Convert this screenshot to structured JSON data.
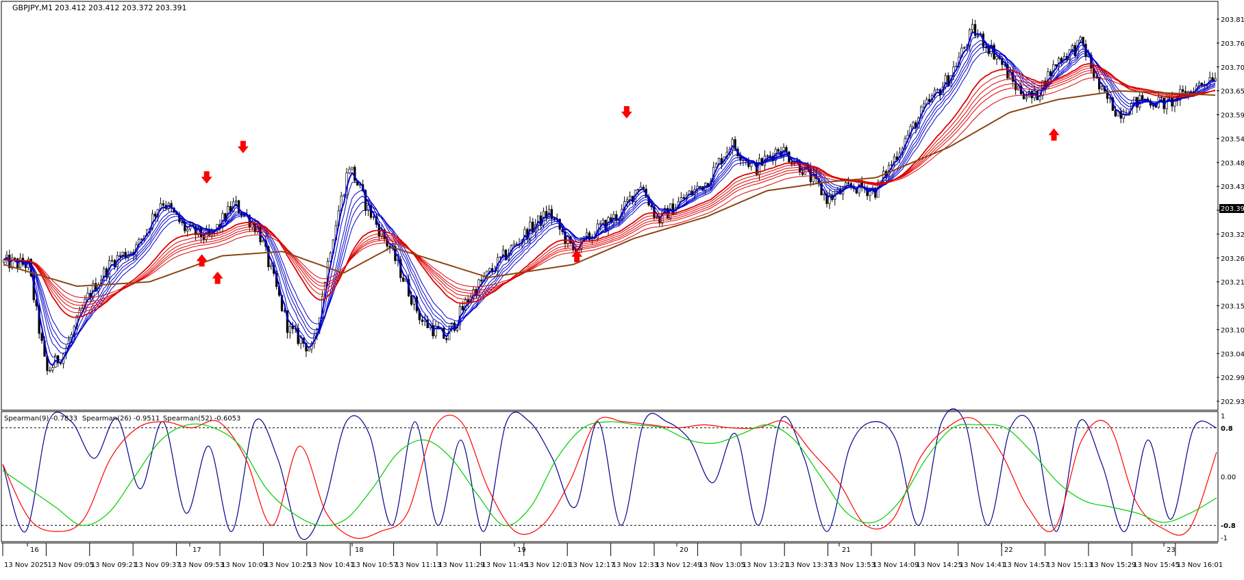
{
  "header": {
    "symbol": "GBPJPY,M1",
    "ohlc": "203.412 203.412 203.372 203.391"
  },
  "price_axis": {
    "ticks": [
      "203.815",
      "203.760",
      "203.705",
      "203.650",
      "203.595",
      "203.540",
      "203.485",
      "203.430",
      "203.375",
      "203.320",
      "203.265",
      "203.210",
      "203.155",
      "203.100",
      "203.045",
      "202.990",
      "202.935"
    ],
    "current": "203.391"
  },
  "indicator": {
    "legend": [
      "Spearman(9) -0.7833",
      "Spearman(26) -0.9511",
      "Spearman(52) -0.6053"
    ],
    "ticks": [
      "1",
      "0.8",
      "0.00",
      "-0.8",
      "-1"
    ],
    "levels": [
      0.8,
      -0.8
    ]
  },
  "time_axis": {
    "day_marks": [
      "16",
      "17",
      "18",
      "19",
      "20",
      "21",
      "22",
      "23"
    ],
    "time_labels": [
      "13 Nov 2025",
      "13 Nov 09:05",
      "13 Nov 09:21",
      "13 Nov 09:37",
      "13 Nov 09:53",
      "13 Nov 10:09",
      "13 Nov 10:25",
      "13 Nov 10:41",
      "13 Nov 10:57",
      "13 Nov 11:13",
      "13 Nov 11:29",
      "13 Nov 11:45",
      "13 Nov 12:01",
      "13 Nov 12:17",
      "13 Nov 12:33",
      "13 Nov 12:49",
      "13 Nov 13:05",
      "13 Nov 13:21",
      "13 Nov 13:37",
      "13 Nov 13:53",
      "13 Nov 14:09",
      "13 Nov 14:25",
      "13 Nov 14:41",
      "13 Nov 14:57",
      "13 Nov 15:13",
      "13 Nov 15:29",
      "13 Nov 15:45",
      "13 Nov 16:01"
    ]
  },
  "colors": {
    "candles": "#000000",
    "fast_ma": "#0000cc",
    "slow_ma": "#dd0000",
    "long_ma": "#8b4513",
    "spearman9": "#00008b",
    "spearman26": "#ff0000",
    "spearman52": "#00cc00",
    "arrows": "#ff0000"
  },
  "chart_data": [
    {
      "type": "candlestick",
      "title": "GBPJPY,M1",
      "ylim": [
        202.935,
        203.83
      ],
      "close_path": [
        {
          "t": 0,
          "v": 203.255
        },
        {
          "t": 0.02,
          "v": 203.25
        },
        {
          "t": 0.035,
          "v": 203.0
        },
        {
          "t": 0.05,
          "v": 203.05
        },
        {
          "t": 0.07,
          "v": 203.18
        },
        {
          "t": 0.09,
          "v": 203.26
        },
        {
          "t": 0.11,
          "v": 203.29
        },
        {
          "t": 0.13,
          "v": 203.4
        },
        {
          "t": 0.15,
          "v": 203.33
        },
        {
          "t": 0.17,
          "v": 203.31
        },
        {
          "t": 0.19,
          "v": 203.39
        },
        {
          "t": 0.21,
          "v": 203.33
        },
        {
          "t": 0.235,
          "v": 203.1
        },
        {
          "t": 0.255,
          "v": 203.05
        },
        {
          "t": 0.27,
          "v": 203.3
        },
        {
          "t": 0.285,
          "v": 203.48
        },
        {
          "t": 0.3,
          "v": 203.38
        },
        {
          "t": 0.32,
          "v": 203.28
        },
        {
          "t": 0.345,
          "v": 203.12
        },
        {
          "t": 0.365,
          "v": 203.08
        },
        {
          "t": 0.385,
          "v": 203.18
        },
        {
          "t": 0.41,
          "v": 203.26
        },
        {
          "t": 0.43,
          "v": 203.32
        },
        {
          "t": 0.45,
          "v": 203.37
        },
        {
          "t": 0.47,
          "v": 203.28
        },
        {
          "t": 0.49,
          "v": 203.33
        },
        {
          "t": 0.51,
          "v": 203.37
        },
        {
          "t": 0.525,
          "v": 203.44
        },
        {
          "t": 0.54,
          "v": 203.35
        },
        {
          "t": 0.56,
          "v": 203.4
        },
        {
          "t": 0.58,
          "v": 203.44
        },
        {
          "t": 0.6,
          "v": 203.53
        },
        {
          "t": 0.62,
          "v": 203.47
        },
        {
          "t": 0.64,
          "v": 203.52
        },
        {
          "t": 0.66,
          "v": 203.47
        },
        {
          "t": 0.68,
          "v": 203.4
        },
        {
          "t": 0.7,
          "v": 203.43
        },
        {
          "t": 0.72,
          "v": 203.42
        },
        {
          "t": 0.74,
          "v": 203.52
        },
        {
          "t": 0.76,
          "v": 203.61
        },
        {
          "t": 0.78,
          "v": 203.68
        },
        {
          "t": 0.8,
          "v": 203.79
        },
        {
          "t": 0.82,
          "v": 203.73
        },
        {
          "t": 0.835,
          "v": 203.66
        },
        {
          "t": 0.85,
          "v": 203.63
        },
        {
          "t": 0.87,
          "v": 203.72
        },
        {
          "t": 0.89,
          "v": 203.76
        },
        {
          "t": 0.905,
          "v": 203.65
        },
        {
          "t": 0.92,
          "v": 203.6
        },
        {
          "t": 0.94,
          "v": 203.63
        },
        {
          "t": 0.96,
          "v": 203.62
        },
        {
          "t": 0.98,
          "v": 203.65
        },
        {
          "t": 1.0,
          "v": 203.69
        }
      ],
      "long_ma_path": [
        {
          "t": 0,
          "v": 203.25
        },
        {
          "t": 0.06,
          "v": 203.2
        },
        {
          "t": 0.12,
          "v": 203.21
        },
        {
          "t": 0.18,
          "v": 203.27
        },
        {
          "t": 0.23,
          "v": 203.28
        },
        {
          "t": 0.28,
          "v": 203.23
        },
        {
          "t": 0.32,
          "v": 203.29
        },
        {
          "t": 0.4,
          "v": 203.22
        },
        {
          "t": 0.47,
          "v": 203.25
        },
        {
          "t": 0.52,
          "v": 203.31
        },
        {
          "t": 0.58,
          "v": 203.36
        },
        {
          "t": 0.63,
          "v": 203.42
        },
        {
          "t": 0.68,
          "v": 203.44
        },
        {
          "t": 0.72,
          "v": 203.45
        },
        {
          "t": 0.78,
          "v": 203.52
        },
        {
          "t": 0.83,
          "v": 203.6
        },
        {
          "t": 0.87,
          "v": 203.63
        },
        {
          "t": 0.92,
          "v": 203.65
        },
        {
          "t": 1.0,
          "v": 203.64
        }
      ],
      "down_arrows": [
        {
          "t": 0.168,
          "v": 203.43
        },
        {
          "t": 0.198,
          "v": 203.5
        },
        {
          "t": 0.514,
          "v": 203.58
        },
        {
          "t": 0.905,
          "v": 203.87
        }
      ],
      "up_arrows": [
        {
          "t": 0.164,
          "v": 203.28
        },
        {
          "t": 0.177,
          "v": 203.24
        },
        {
          "t": 0.473,
          "v": 203.29
        },
        {
          "t": 0.866,
          "v": 203.57
        }
      ]
    },
    {
      "type": "line",
      "title": "Spearman",
      "ylim": [
        -1,
        1
      ],
      "series": [
        {
          "name": "Spearman(9) -0.7833",
          "values": [
            0.2,
            -0.9,
            0.9,
            0.9,
            0.3,
            0.95,
            -0.2,
            0.9,
            -0.6,
            0.5,
            -0.9,
            0.9,
            0.3,
            -1.0,
            -0.5,
            0.9,
            0.7,
            -0.8,
            0.9,
            -0.8,
            0.6,
            -0.9,
            0.9,
            0.9,
            0.3,
            -0.5,
            0.9,
            -0.8,
            0.9,
            0.9,
            0.6,
            -0.1,
            0.7,
            -0.8,
            0.95,
            0.3,
            -0.9,
            0.5,
            0.9,
            0.6,
            -0.8,
            0.9,
            0.9,
            -0.8,
            0.8,
            0.8,
            -0.9,
            0.9,
            0.2,
            -0.9,
            0.6,
            -0.7,
            0.8,
            0.8
          ]
        },
        {
          "name": "Spearman(26) -0.9511",
          "values": [
            0.2,
            -0.7,
            -0.9,
            -0.7,
            0.3,
            0.8,
            0.9,
            0.8,
            0.9,
            0.3,
            -0.8,
            0.5,
            -0.6,
            -1.0,
            -0.9,
            -0.6,
            0.8,
            0.9,
            -0.2,
            -0.9,
            -0.8,
            -0.1,
            0.9,
            0.9,
            0.85,
            0.8,
            0.85,
            0.8,
            0.8,
            0.9,
            0.4,
            -0.1,
            -0.8,
            -0.7,
            0.3,
            0.8,
            0.95,
            0.4,
            -0.5,
            -0.85,
            0.6,
            0.85,
            -0.4,
            -0.85,
            -0.85,
            0.4
          ]
        },
        {
          "name": "Spearman(52) -0.6053",
          "values": [
            0.1,
            -0.2,
            -0.5,
            -0.8,
            -0.6,
            0.0,
            0.6,
            0.85,
            0.8,
            0.5,
            -0.2,
            -0.6,
            -0.8,
            -0.7,
            -0.2,
            0.4,
            0.6,
            0.3,
            -0.3,
            -0.8,
            -0.5,
            0.3,
            0.8,
            0.9,
            0.85,
            0.8,
            0.6,
            0.55,
            0.7,
            0.85,
            0.6,
            0.0,
            -0.6,
            -0.75,
            -0.4,
            0.3,
            0.8,
            0.85,
            0.8,
            0.4,
            -0.1,
            -0.4,
            -0.5,
            -0.6,
            -0.75,
            -0.6,
            -0.35
          ]
        }
      ]
    }
  ]
}
